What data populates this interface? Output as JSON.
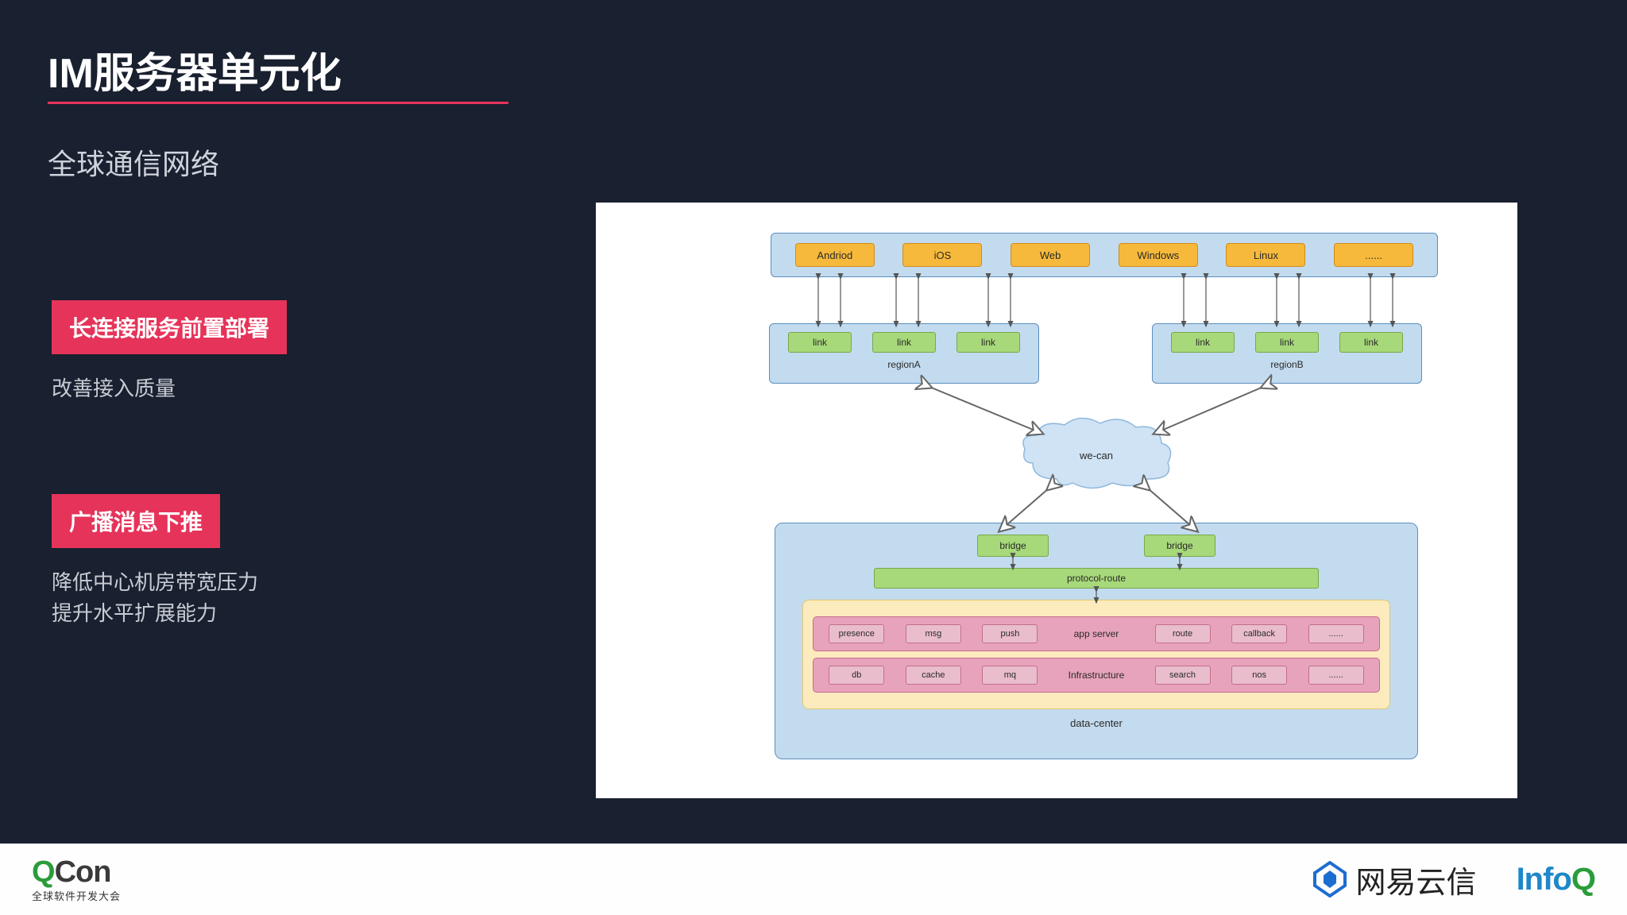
{
  "slide": {
    "title": "IM服务器单元化",
    "subtitle": "全球通信网络",
    "underline_color": "#e6335a",
    "bg_color": "#19202f"
  },
  "points": [
    {
      "badge": "长连接服务前置部署",
      "desc": "改善接入质量"
    },
    {
      "badge": "广播消息下推",
      "desc": "降低中心机房带宽压力\n提升水平扩展能力"
    }
  ],
  "diagram": {
    "type": "flowchart",
    "background_color": "#ffffff",
    "colors": {
      "band_fill": "#c3dbee",
      "band_border": "#5a8fbe",
      "orange_fill": "#f6b93b",
      "orange_border": "#d48a1a",
      "green_fill": "#a7d97a",
      "green_border": "#77a84a",
      "cloud_fill": "#cfe3f5",
      "cloud_border": "#8fb8dd",
      "yellow_fill": "#fcebbd",
      "yellow_border": "#e5c66a",
      "pink_row_fill": "#e7a3bb",
      "pink_row_border": "#c46d90",
      "svc_fill": "#e9bdcc"
    },
    "clients": [
      "Andriod",
      "iOS",
      "Web",
      "Windows",
      "Linux",
      "......"
    ],
    "regions": [
      {
        "name": "regionA",
        "links": [
          "link",
          "link",
          "link"
        ]
      },
      {
        "name": "regionB",
        "links": [
          "link",
          "link",
          "link"
        ]
      }
    ],
    "cloud_label": "we-can",
    "datacenter": {
      "label": "data-center",
      "bridges": [
        "bridge",
        "bridge"
      ],
      "protocol_route": "protocol-route",
      "app_row": {
        "label": "app server",
        "items": [
          "presence",
          "msg",
          "push",
          "route",
          "callback",
          "......"
        ]
      },
      "infra_row": {
        "label": "Infrastructure",
        "items": [
          "db",
          "cache",
          "mq",
          "search",
          "nos",
          "......"
        ]
      }
    }
  },
  "footer": {
    "qcon": {
      "text_q": "Q",
      "text_con": "Con",
      "subtitle": "全球软件开发大会"
    },
    "netease": "网易云信",
    "infoq": {
      "info": "Info",
      "q": "Q"
    }
  }
}
